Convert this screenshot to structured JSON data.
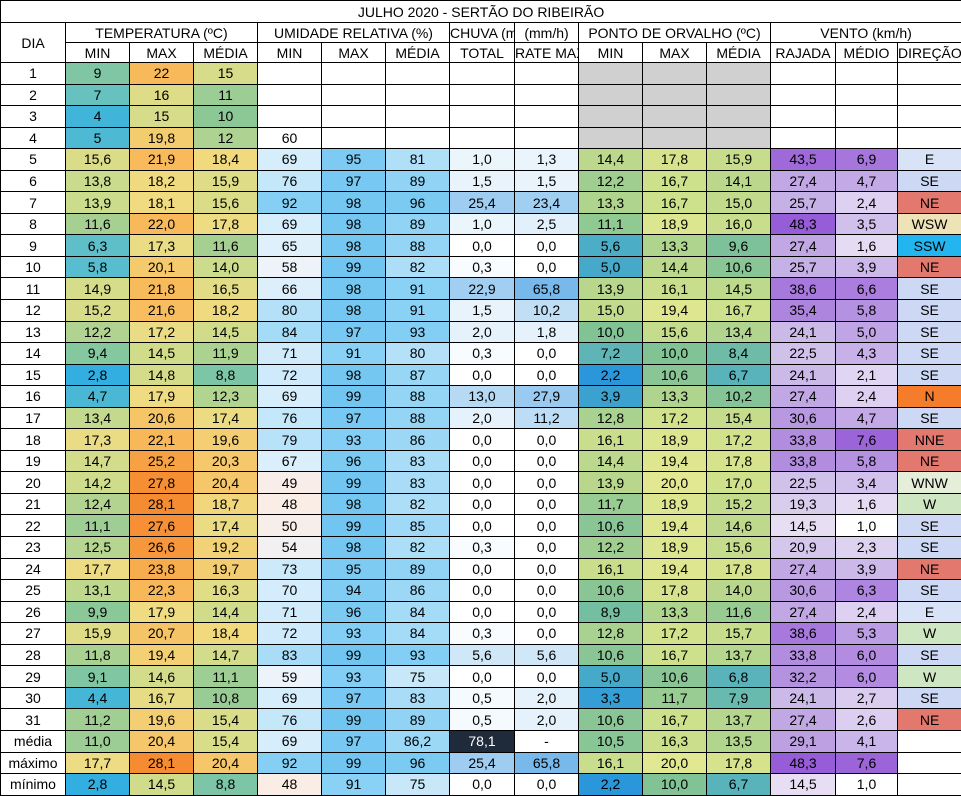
{
  "title": "JULHO 2020 - SERTÃO DO RIBEIRÃO",
  "headers": {
    "day": "DIA",
    "groups": [
      "TEMPERATURA (ºC)",
      "UMIDADE RELATIVA (%)",
      "CHUVA (mm)",
      "(mm/h)",
      "PONTO DE ORVALHO (ºC)",
      "VENTO (km/h)"
    ],
    "sub": [
      "MIN",
      "MAX",
      "MÉDIA",
      "MIN",
      "MAX",
      "MÉDIA",
      "TOTAL",
      "RATE MAX",
      "MIN",
      "MAX",
      "MÉDIA",
      "RAJADA",
      "MÉDIO",
      "DIREÇÃO"
    ]
  },
  "rows": [
    [
      "1",
      "9",
      "22",
      "15",
      "",
      "",
      "",
      "",
      "",
      "",
      "",
      "",
      "",
      "",
      ""
    ],
    [
      "2",
      "7",
      "16",
      "11",
      "",
      "",
      "",
      "",
      "",
      "",
      "",
      "",
      "",
      "",
      ""
    ],
    [
      "3",
      "4",
      "15",
      "10",
      "",
      "",
      "",
      "",
      "",
      "",
      "",
      "",
      "",
      "",
      ""
    ],
    [
      "4",
      "5",
      "19,8",
      "12",
      "60",
      "",
      "",
      "",
      "",
      "",
      "",
      "",
      "",
      "",
      ""
    ],
    [
      "5",
      "15,6",
      "21,9",
      "18,4",
      "69",
      "95",
      "81",
      "1,0",
      "1,3",
      "14,4",
      "17,8",
      "15,9",
      "43,5",
      "6,9",
      "E"
    ],
    [
      "6",
      "13,8",
      "18,2",
      "15,9",
      "76",
      "97",
      "89",
      "1,5",
      "1,5",
      "12,2",
      "16,7",
      "14,1",
      "27,4",
      "4,7",
      "SE"
    ],
    [
      "7",
      "13,9",
      "18,1",
      "15,6",
      "92",
      "98",
      "96",
      "25,4",
      "23,4",
      "13,3",
      "16,7",
      "15,0",
      "25,7",
      "2,4",
      "NE"
    ],
    [
      "8",
      "11,6",
      "22,0",
      "17,8",
      "69",
      "98",
      "89",
      "1,0",
      "2,5",
      "11,1",
      "18,9",
      "16,0",
      "48,3",
      "3,5",
      "WSW"
    ],
    [
      "9",
      "6,3",
      "17,3",
      "11,6",
      "65",
      "98",
      "88",
      "0,0",
      "0,0",
      "5,6",
      "13,3",
      "9,6",
      "27,4",
      "1,6",
      "SSW"
    ],
    [
      "10",
      "5,8",
      "20,1",
      "14,0",
      "58",
      "99",
      "82",
      "0,3",
      "0,0",
      "5,0",
      "14,4",
      "10,6",
      "25,7",
      "3,9",
      "NE"
    ],
    [
      "11",
      "14,9",
      "21,8",
      "16,5",
      "66",
      "98",
      "91",
      "22,9",
      "65,8",
      "13,9",
      "16,1",
      "14,5",
      "38,6",
      "6,6",
      "SE"
    ],
    [
      "12",
      "15,2",
      "21,6",
      "18,2",
      "80",
      "98",
      "91",
      "1,5",
      "10,2",
      "15,0",
      "19,4",
      "16,7",
      "35,4",
      "5,8",
      "SE"
    ],
    [
      "13",
      "12,2",
      "17,2",
      "14,5",
      "84",
      "97",
      "93",
      "2,0",
      "1,8",
      "10,0",
      "15,6",
      "13,4",
      "24,1",
      "5,0",
      "SE"
    ],
    [
      "14",
      "9,4",
      "14,5",
      "11,9",
      "71",
      "91",
      "80",
      "0,3",
      "0,0",
      "7,2",
      "10,0",
      "8,4",
      "22,5",
      "4,3",
      "SE"
    ],
    [
      "15",
      "2,8",
      "14,8",
      "8,8",
      "72",
      "98",
      "87",
      "0,0",
      "0,0",
      "2,2",
      "10,6",
      "6,7",
      "24,1",
      "2,1",
      "SE"
    ],
    [
      "16",
      "4,7",
      "17,9",
      "12,3",
      "69",
      "99",
      "88",
      "13,0",
      "27,9",
      "3,9",
      "13,3",
      "10,2",
      "27,4",
      "2,4",
      "N"
    ],
    [
      "17",
      "13,4",
      "20,6",
      "17,4",
      "76",
      "97",
      "88",
      "2,0",
      "11,2",
      "12,8",
      "17,2",
      "15,4",
      "30,6",
      "4,7",
      "SE"
    ],
    [
      "18",
      "17,3",
      "22,1",
      "19,6",
      "79",
      "93",
      "86",
      "0,0",
      "0,0",
      "16,1",
      "18,9",
      "17,2",
      "33,8",
      "7,6",
      "NNE"
    ],
    [
      "19",
      "14,7",
      "25,2",
      "20,3",
      "67",
      "96",
      "83",
      "0,0",
      "0,0",
      "14,4",
      "19,4",
      "17,8",
      "33,8",
      "5,8",
      "NE"
    ],
    [
      "20",
      "14,2",
      "27,8",
      "20,4",
      "49",
      "99",
      "83",
      "0,0",
      "0,0",
      "13,9",
      "20,0",
      "17,0",
      "22,5",
      "3,4",
      "WNW"
    ],
    [
      "21",
      "12,4",
      "28,1",
      "18,7",
      "48",
      "98",
      "82",
      "0,0",
      "0,0",
      "11,7",
      "18,9",
      "15,2",
      "19,3",
      "1,6",
      "W"
    ],
    [
      "22",
      "11,1",
      "27,6",
      "17,4",
      "50",
      "99",
      "85",
      "0,0",
      "0,0",
      "10,6",
      "19,4",
      "14,6",
      "14,5",
      "1,0",
      "SE"
    ],
    [
      "23",
      "12,5",
      "26,6",
      "19,2",
      "54",
      "98",
      "82",
      "0,3",
      "0,0",
      "12,2",
      "18,9",
      "15,6",
      "20,9",
      "2,3",
      "SE"
    ],
    [
      "24",
      "17,7",
      "23,8",
      "19,7",
      "73",
      "95",
      "89",
      "0,0",
      "0,0",
      "16,1",
      "19,4",
      "17,8",
      "27,4",
      "3,9",
      "NE"
    ],
    [
      "25",
      "13,1",
      "22,3",
      "16,3",
      "70",
      "94",
      "86",
      "0,0",
      "0,0",
      "10,6",
      "17,8",
      "14,0",
      "30,6",
      "6,3",
      "SE"
    ],
    [
      "26",
      "9,9",
      "17,9",
      "14,4",
      "71",
      "96",
      "84",
      "0,0",
      "0,0",
      "8,9",
      "13,3",
      "11,6",
      "27,4",
      "2,4",
      "E"
    ],
    [
      "27",
      "15,9",
      "20,7",
      "18,4",
      "72",
      "93",
      "84",
      "0,3",
      "0,0",
      "12,8",
      "17,2",
      "15,7",
      "38,6",
      "5,3",
      "W"
    ],
    [
      "28",
      "11,8",
      "19,4",
      "14,7",
      "83",
      "99",
      "93",
      "5,6",
      "5,6",
      "10,6",
      "16,7",
      "13,7",
      "33,8",
      "6,0",
      "SE"
    ],
    [
      "29",
      "9,1",
      "14,6",
      "11,1",
      "59",
      "93",
      "75",
      "0,0",
      "0,0",
      "5,0",
      "10,6",
      "6,8",
      "32,2",
      "6,0",
      "W"
    ],
    [
      "30",
      "4,4",
      "16,7",
      "10,8",
      "69",
      "97",
      "83",
      "0,5",
      "2,0",
      "3,3",
      "11,7",
      "7,9",
      "24,1",
      "2,7",
      "SE"
    ],
    [
      "31",
      "11,2",
      "19,6",
      "15,4",
      "76",
      "99",
      "89",
      "0,5",
      "2,0",
      "10,6",
      "16,7",
      "13,7",
      "27,4",
      "2,6",
      "NE"
    ]
  ],
  "summary": [
    [
      "média",
      "11,0",
      "20,4",
      "15,4",
      "69",
      "97",
      "86,2",
      "78,1",
      "-",
      "10,5",
      "16,3",
      "13,5",
      "29,1",
      "4,1",
      ""
    ],
    [
      "máximo",
      "17,7",
      "28,1",
      "20,4",
      "92",
      "99",
      "96",
      "25,4",
      "65,8",
      "16,1",
      "20,0",
      "17,8",
      "48,3",
      "7,6",
      ""
    ],
    [
      "mínimo",
      "2,8",
      "14,5",
      "8,8",
      "48",
      "91",
      "75",
      "0,0",
      "0,0",
      "2,2",
      "10,0",
      "6,7",
      "14,5",
      "1,0",
      ""
    ]
  ],
  "palette": {
    "dir_NE": "#e3786e",
    "dir_SE": "#ccd8f4",
    "dir_E": "#d9e3f7",
    "dir_W": "#cfe6c3",
    "dir_WSW": "#ede3b6",
    "dir_SSW": "#22b5ef",
    "dir_N": "#f47c2a",
    "dir_NNE": "#e3786e",
    "dir_WNW": "#e4eed9",
    "dir_default": "#ffffff",
    "rain_total_highlight": "#1f2a3a"
  }
}
